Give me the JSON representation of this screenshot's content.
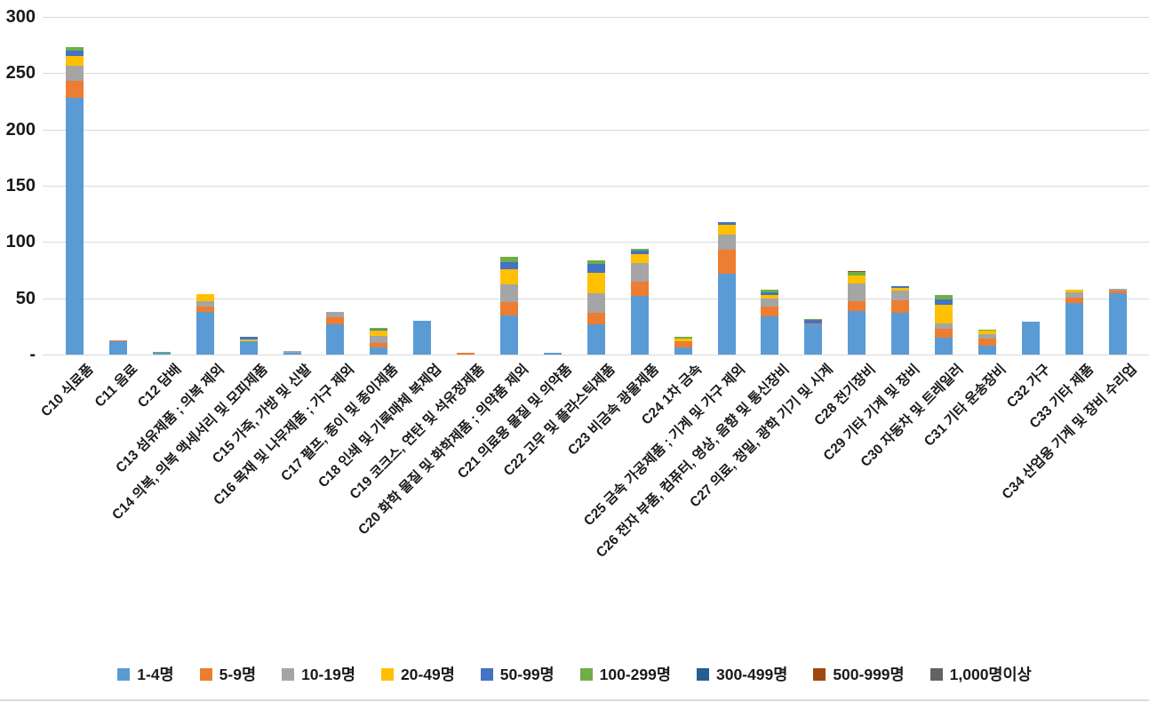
{
  "chart_data": {
    "type": "bar",
    "stacked": true,
    "title": "",
    "xlabel": "",
    "ylabel": "",
    "grid": true,
    "legend_position": "bottom",
    "y_axis": {
      "min": 0,
      "max": 300,
      "tick_values": [
        0,
        50,
        100,
        150,
        200,
        250,
        300
      ],
      "tick_labels": [
        "-",
        "50",
        "100",
        "150",
        "200",
        "250",
        "300"
      ]
    },
    "categories": [
      "C10 식료품",
      "C11 음료",
      "C12 담배",
      "C13 섬유제품 ; 의복 제외",
      "C14 의복, 의복 액세서리 및 모피제품",
      "C15 가죽, 가방 및 신발",
      "C16 목재 및 나무제품 ; 가구 제외",
      "C17 펄프, 종이 및 종이제품",
      "C18 인쇄 및 기록매체 복제업",
      "C19 코크스, 연탄 및 석유정제품",
      "C20 화학 물질 및 화학제품 ; 의약품 제외",
      "C21 의료용 물질 및 의약품",
      "C22 고무 및 플라스틱제품",
      "C23 비금속 광물제품",
      "C24 1차 금속",
      "C25 금속 가공제품 ; 기계 및 가구 제외",
      "C26 전자 부품, 컴퓨터, 영상, 음향 및 통신장비",
      "C27 의료, 정밀, 광학 기기 및 시계",
      "C28 전기장비",
      "C29 기타 기계 및 장비",
      "C30 자동차 및 트레일러",
      "C31 기타 운송장비",
      "C32 가구",
      "C33 기타 제품",
      "C34 산업용 기계 및 장비 수리업"
    ],
    "series": [
      {
        "name": "1-4명",
        "color": "#5B9BD5",
        "values": [
          228,
          11.5,
          1.5,
          38,
          12,
          1.5,
          27,
          6.5,
          30,
          0,
          34.5,
          1.5,
          27,
          52,
          6,
          72,
          34,
          26.5,
          38.5,
          37,
          15,
          8,
          29.5,
          46,
          54.5
        ]
      },
      {
        "name": "5-9명",
        "color": "#ED7D31",
        "values": [
          15,
          1.5,
          0,
          4.5,
          0,
          0,
          6.5,
          4,
          0,
          1.5,
          12,
          0,
          10.5,
          13,
          6,
          21,
          8.5,
          1.5,
          8.5,
          11.5,
          8,
          6,
          0,
          4.5,
          2
        ]
      },
      {
        "name": "10-19명",
        "color": "#A5A5A5",
        "values": [
          14,
          0,
          0,
          5,
          0,
          2,
          4.5,
          6,
          0,
          0,
          16,
          0,
          17,
          16,
          0,
          13.5,
          7.5,
          0,
          16,
          8.5,
          4.5,
          4.5,
          0,
          4.5,
          2
        ]
      },
      {
        "name": "20-49명",
        "color": "#FFC000",
        "values": [
          8,
          0,
          0,
          6.5,
          1.5,
          0,
          0,
          4.5,
          0,
          0,
          13.5,
          0,
          18.5,
          8,
          2.5,
          8.5,
          3,
          0,
          7,
          2.5,
          17,
          2.5,
          0,
          3,
          0
        ]
      },
      {
        "name": "50-99명",
        "color": "#4472C4",
        "values": [
          5,
          0,
          0,
          0,
          2,
          0,
          0,
          1.5,
          0,
          0,
          6.5,
          0,
          7.5,
          3,
          0,
          3,
          2.5,
          2.5,
          0,
          1,
          4.5,
          0,
          0,
          0,
          0
        ]
      },
      {
        "name": "100-299명",
        "color": "#70AD47",
        "values": [
          3,
          0,
          1,
          0,
          0,
          0,
          0,
          1,
          0,
          0,
          4.5,
          0,
          3,
          2,
          1.5,
          0,
          2.5,
          1,
          3,
          0.5,
          4,
          1,
          0,
          0,
          0
        ]
      },
      {
        "name": "300-499명",
        "color": "#255E91",
        "values": [
          0,
          0,
          0,
          0,
          0,
          0,
          0,
          0,
          0,
          0,
          0,
          0,
          0,
          0,
          0,
          0,
          0,
          0,
          0,
          0,
          0,
          0,
          0,
          0,
          0
        ]
      },
      {
        "name": "500-999명",
        "color": "#9E480E",
        "values": [
          0,
          0,
          0,
          0,
          0,
          0,
          0,
          0,
          0,
          0,
          0,
          0,
          0,
          0,
          0,
          0,
          0,
          0,
          1.5,
          0,
          0,
          0,
          0,
          0,
          0
        ]
      },
      {
        "name": "1,000명이상",
        "color": "#636363",
        "values": [
          0,
          0,
          0,
          0,
          0,
          0,
          0,
          0,
          0,
          0,
          0,
          0,
          0,
          0,
          0,
          0,
          0,
          0,
          0,
          0,
          0,
          0,
          0,
          0,
          0
        ]
      }
    ]
  },
  "style": {
    "gridline_color": "#d9d9d9",
    "text_color": "#1a1a1a",
    "background": "#ffffff"
  }
}
